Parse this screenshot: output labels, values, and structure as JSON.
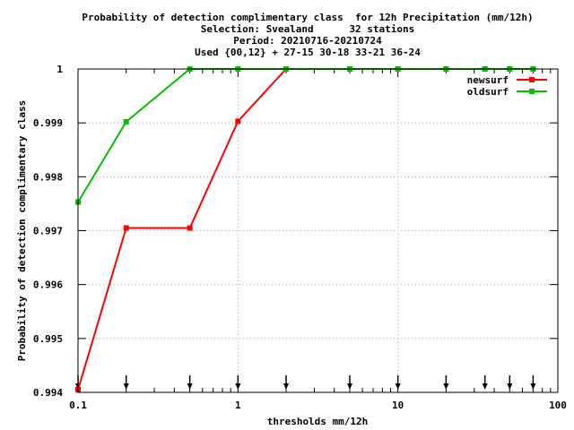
{
  "chart_data": {
    "type": "line",
    "title_lines": [
      "Probability of detection complimentary class  for 12h Precipitation (mm/12h)",
      "Selection: Svealand      32 stations",
      "Period: 20210716-20210724",
      "Used {00,12} + 27-15 30-18 33-21 36-24"
    ],
    "xlabel": "thresholds mm/12h",
    "ylabel": "Probability of detection complimentary class",
    "x_scale": "log",
    "xlim": [
      0.1,
      100
    ],
    "ylim": [
      0.994,
      1.0
    ],
    "x_ticks": [
      {
        "value": 0.1,
        "label": "0.1"
      },
      {
        "value": 1,
        "label": "1"
      },
      {
        "value": 10,
        "label": "10"
      },
      {
        "value": 100,
        "label": "100"
      }
    ],
    "y_ticks": [
      {
        "value": 0.994,
        "label": "0.994"
      },
      {
        "value": 0.995,
        "label": "0.995"
      },
      {
        "value": 0.996,
        "label": "0.996"
      },
      {
        "value": 0.997,
        "label": "0.997"
      },
      {
        "value": 0.998,
        "label": "0.998"
      },
      {
        "value": 0.999,
        "label": "0.999"
      },
      {
        "value": 1.0,
        "label": "1"
      }
    ],
    "grid": true,
    "legend": "top-right",
    "series": [
      {
        "name": "newsurf",
        "color": "#ff0000",
        "points": [
          {
            "x": 0.1,
            "y": 0.99405
          },
          {
            "x": 0.2,
            "y": 0.99705
          },
          {
            "x": 0.5,
            "y": 0.99705
          },
          {
            "x": 1,
            "y": 0.99903
          },
          {
            "x": 2,
            "y": 1.0
          },
          {
            "x": 5,
            "y": 1.0
          },
          {
            "x": 10,
            "y": 1.0
          },
          {
            "x": 20,
            "y": 1.0
          },
          {
            "x": 35,
            "y": 1.0
          },
          {
            "x": 50,
            "y": 1.0
          },
          {
            "x": 70,
            "y": 1.0
          }
        ]
      },
      {
        "name": "oldsurf",
        "color": "#00c000",
        "points": [
          {
            "x": 0.1,
            "y": 0.99753
          },
          {
            "x": 0.2,
            "y": 0.99902
          },
          {
            "x": 0.5,
            "y": 1.0
          },
          {
            "x": 1,
            "y": 1.0
          },
          {
            "x": 2,
            "y": 1.0
          },
          {
            "x": 5,
            "y": 1.0
          },
          {
            "x": 10,
            "y": 1.0
          },
          {
            "x": 20,
            "y": 1.0
          },
          {
            "x": 35,
            "y": 1.0
          },
          {
            "x": 50,
            "y": 1.0
          },
          {
            "x": 70,
            "y": 1.0
          }
        ]
      }
    ],
    "threshold_markers": [
      0.1,
      0.2,
      0.5,
      1,
      2,
      5,
      10,
      20,
      35,
      50,
      70
    ]
  }
}
